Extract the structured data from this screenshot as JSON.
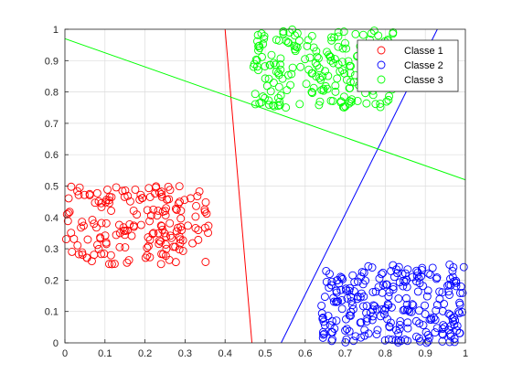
{
  "chart_data": {
    "type": "scatter",
    "xlim": [
      0,
      1
    ],
    "ylim": [
      0,
      1
    ],
    "xticks": [
      "0",
      "0.1",
      "0.2",
      "0.3",
      "0.4",
      "0.5",
      "0.6",
      "0.7",
      "0.8",
      "0.9",
      "1"
    ],
    "yticks": [
      "0",
      "0.1",
      "0.2",
      "0.3",
      "0.4",
      "0.5",
      "0.6",
      "0.7",
      "0.8",
      "0.9",
      "1"
    ],
    "grid": true,
    "legend_position": "top-right",
    "series": [
      {
        "name": "Classe 1",
        "color": "#ff0000",
        "marker": "circle-open",
        "cluster": {
          "x_range": [
            0.0,
            0.36
          ],
          "y_range": [
            0.25,
            0.5
          ],
          "count": 180
        }
      },
      {
        "name": "Classe 2",
        "color": "#0000ff",
        "marker": "circle-open",
        "cluster": {
          "x_range": [
            0.64,
            1.0
          ],
          "y_range": [
            0.0,
            0.25
          ],
          "count": 260
        }
      },
      {
        "name": "Classe 3",
        "color": "#00ff00",
        "marker": "circle-open",
        "cluster": {
          "x_range": [
            0.47,
            0.83
          ],
          "y_range": [
            0.75,
            1.0
          ],
          "count": 220
        }
      }
    ],
    "lines": [
      {
        "color": "#ff0000",
        "points": [
          [
            0.4,
            1.0
          ],
          [
            0.467,
            0.0
          ]
        ]
      },
      {
        "color": "#0000ff",
        "points": [
          [
            0.54,
            0.0
          ],
          [
            0.93,
            1.0
          ]
        ]
      },
      {
        "color": "#00ff00",
        "points": [
          [
            0.0,
            0.97
          ],
          [
            1.0,
            0.52
          ]
        ]
      }
    ]
  }
}
